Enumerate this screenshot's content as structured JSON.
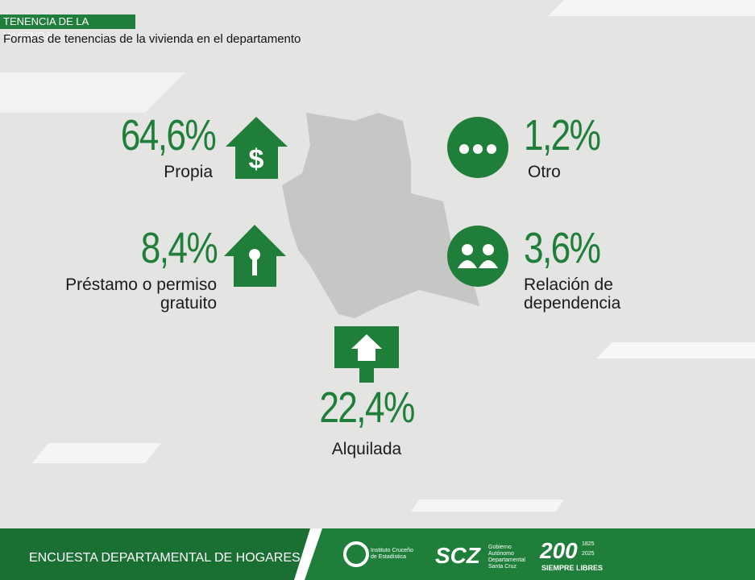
{
  "header": {
    "title": "TENENCIA DE LA VIVIENDA",
    "subtitle": "Formas de tenencias de la vivienda en el departamento"
  },
  "items": [
    {
      "value": "64,6%",
      "label": "Propia"
    },
    {
      "value": "8,4%",
      "label": "Préstamo o permiso gratuito"
    },
    {
      "value": "22,4%",
      "label": "Alquilada"
    },
    {
      "value": "1,2%",
      "label": "Otro"
    },
    {
      "value": "3,6%",
      "label": "Relación de dependencia"
    }
  ],
  "footer": {
    "survey": "ENCUESTA DEPARTAMENTAL DE HOGARES",
    "logo_institute": "Instituto Cruceño de Estadística",
    "logo_scz": "SCZ",
    "logo_government": "Gobierno Autónomo Departamental Santa Cruz",
    "logo_200": "200",
    "logo_year_start": "1825",
    "logo_year_end": "2025",
    "logo_motto": "SIEMPRE LIBRES"
  }
}
